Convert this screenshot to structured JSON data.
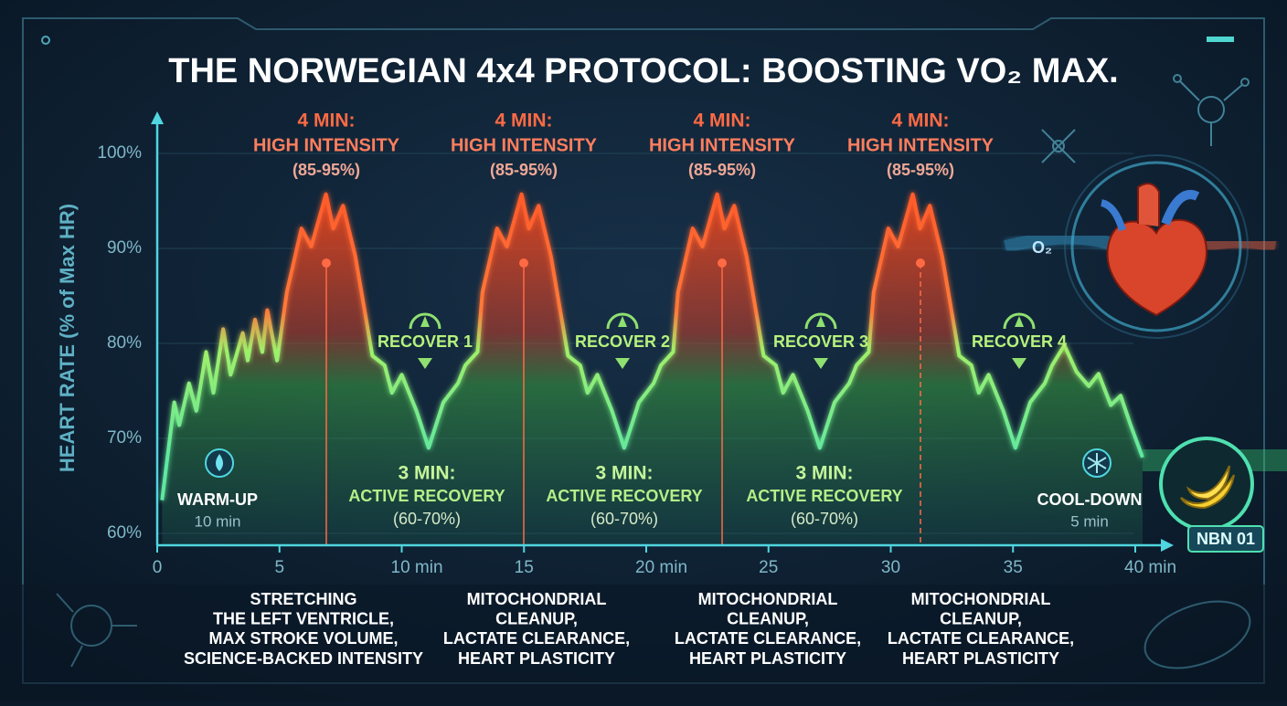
{
  "chart_data": {
    "type": "line",
    "title": "THE NORWEGIAN 4x4 PROTOCOL: BOOSTING VO₂ MAX.",
    "y_label": "HEART RATE (% of Max HR)",
    "x": [
      0.2,
      0.7,
      0.9,
      1.3,
      1.6,
      2,
      2.3,
      2.7,
      3,
      3.5,
      3.7,
      4,
      4.3,
      4.5,
      4.9,
      5.3,
      5.9,
      6.3,
      6.9,
      7.2,
      7.6,
      8.1,
      8.8,
      9.3,
      9.6,
      10,
      10.6,
      11.1,
      11.7,
      12.3,
      12.6,
      13.1,
      13.3,
      13.9,
      14.3,
      14.9,
      15.2,
      15.6,
      16.1,
      16.8,
      17.3,
      17.6,
      18,
      18.6,
      19.1,
      19.7,
      20.3,
      20.6,
      21.1,
      21.3,
      21.9,
      22.3,
      22.9,
      23.2,
      23.6,
      24.1,
      24.8,
      25.3,
      25.6,
      26,
      26.6,
      27.1,
      27.7,
      28.3,
      28.6,
      29.1,
      29.3,
      29.9,
      30.3,
      30.9,
      31.2,
      31.6,
      32.1,
      32.8,
      33.3,
      33.6,
      34,
      34.6,
      35.1,
      35.7,
      36.3,
      36.6,
      37.1,
      37.6,
      38.1,
      38.5,
      39,
      39.4,
      39.8,
      40.3
    ],
    "values": [
      63.5,
      73.8,
      71.4,
      75.8,
      72.9,
      79.1,
      74.8,
      81.5,
      76.7,
      81.1,
      78.2,
      82.5,
      79.1,
      83.5,
      78.2,
      85.4,
      92.1,
      90.2,
      95.7,
      92.1,
      94.5,
      89.2,
      78.7,
      77.7,
      74.8,
      76.7,
      72.9,
      69,
      73.8,
      75.8,
      77.7,
      79.1,
      85.4,
      92.1,
      90.2,
      95.7,
      92.1,
      94.5,
      89.2,
      78.7,
      77.7,
      74.8,
      76.7,
      72.9,
      69,
      73.8,
      75.8,
      77.7,
      79.1,
      85.4,
      92.1,
      90.2,
      95.7,
      92.1,
      94.5,
      89.2,
      78.7,
      77.7,
      74.8,
      76.7,
      72.9,
      69,
      73.8,
      75.8,
      77.7,
      79.1,
      85.4,
      92.1,
      90.2,
      95.7,
      92.1,
      94.5,
      89.2,
      78.7,
      77.7,
      74.8,
      76.7,
      72.9,
      69,
      73.8,
      75.8,
      77.7,
      79.8,
      77,
      75.5,
      76.8,
      73.5,
      74.5,
      71.5,
      68
    ],
    "xlim": [
      0,
      41.5
    ],
    "ylim": [
      59,
      104
    ],
    "xticks": [
      0,
      5,
      {
        "value": 10,
        "label": "10 min"
      },
      15,
      {
        "value": 20,
        "label": "20 min"
      },
      25,
      30,
      35,
      {
        "value": 40,
        "label": "40 min"
      }
    ],
    "yticks": [
      {
        "value": 60,
        "label": "60%"
      },
      {
        "value": 70,
        "label": "70%"
      },
      {
        "value": 80,
        "label": "80%"
      },
      {
        "value": 90,
        "label": "90%"
      },
      {
        "value": 100,
        "label": "100%"
      }
    ],
    "grid": true,
    "high_intensity": [
      [
        "4 MIN:",
        "HIGH INTENSITY",
        "(85-95%)"
      ],
      [
        "4 MIN:",
        "HIGH INTENSITY",
        "(85-95%)"
      ],
      [
        "4 MIN:",
        "HIGH INTENSITY",
        "(85-95%)"
      ],
      [
        "4 MIN:",
        "HIGH INTENSITY",
        "(85-95%)"
      ]
    ],
    "recover_labels": [
      "RECOVER 1",
      "RECOVER 2",
      "RECOVER 3",
      "RECOVER 4"
    ],
    "active_recovery": [
      [
        "3 MIN:",
        "ACTIVE RECOVERY",
        "(60-70%)"
      ],
      [
        "3 MIN:",
        "ACTIVE RECOVERY",
        "(60-70%)"
      ],
      [
        "3 MIN:",
        "ACTIVE RECOVERY",
        "(60-70%)"
      ]
    ],
    "warm_up": [
      "WARM-UP",
      "10 min"
    ],
    "cool_down": [
      "COOL-DOWN",
      "5 min"
    ],
    "benefits": [
      [
        "STRETCHING",
        "THE LEFT VENTRICLE,",
        "MAX STROKE VOLUME,",
        "SCIENCE-BACKED INTENSITY"
      ],
      [
        "MITOCHONDRIAL",
        "CLEANUP,",
        "LACTATE CLEARANCE,",
        "HEART PLASTICITY"
      ],
      [
        "MITOCHONDRIAL",
        "CLEANUP,",
        "LACTATE CLEARANCE,",
        "HEART PLASTICITY"
      ],
      [
        "MITOCHONDRIAL",
        "CLEANUP,",
        "LACTATE CLEARANCE,",
        "HEART PLASTICITY"
      ]
    ]
  },
  "oxygen_label": "O₂",
  "badge": "NBN 01"
}
